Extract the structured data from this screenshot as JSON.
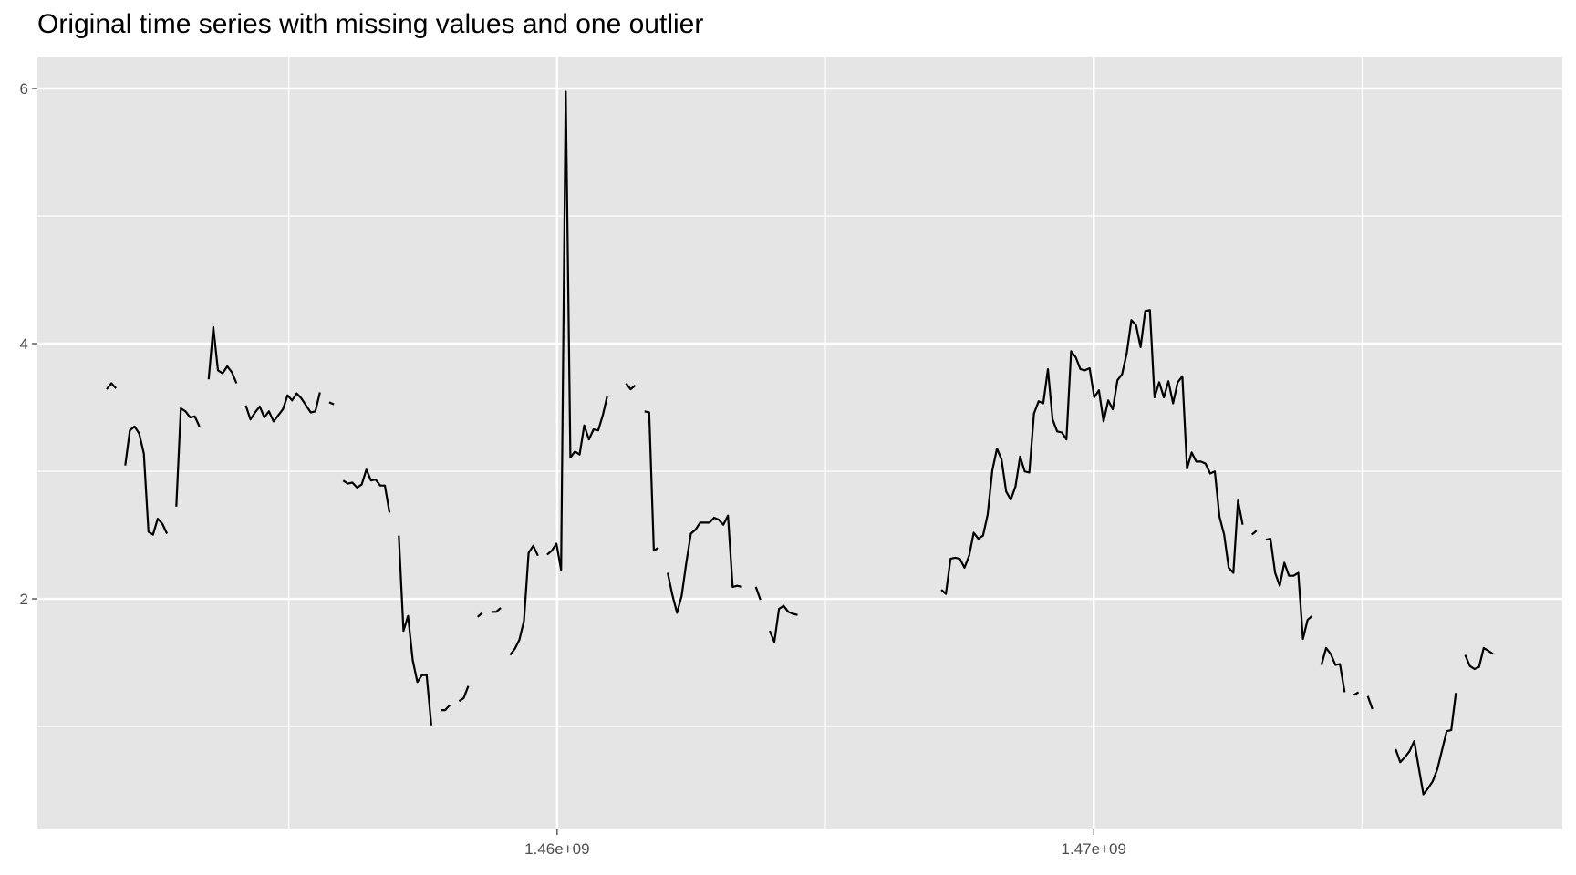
{
  "chart_data": {
    "type": "line",
    "title": "Original time series with missing values and one outlier",
    "xlabel": "",
    "ylabel": "",
    "xlim": [
      1450314720,
      1478731680
    ],
    "ylim": [
      0.193,
      6.25
    ],
    "x_breaks": [
      1460000000,
      1470000000
    ],
    "x_tick_labels": [
      "1.46e+09",
      "1.47e+09"
    ],
    "x_minor_breaks": [
      1455000000,
      1465000000,
      1475000000
    ],
    "y_breaks": [
      2,
      4,
      6
    ],
    "y_tick_labels": [
      "2",
      "4",
      "6"
    ],
    "y_minor_breaks": [
      1,
      3,
      5
    ],
    "grid": true,
    "legend": "none",
    "colors": {
      "line": "#000000",
      "panel": "#e5e5e5",
      "grid": "#ffffff",
      "tick_text": "#4d4d4d"
    },
    "points": [
      [
        1451606400,
        3.642
      ],
      [
        1451692800,
        3.689
      ],
      [
        1451779200,
        3.65
      ],
      [
        1451952000,
        3.045
      ],
      [
        1452038400,
        3.32
      ],
      [
        1452124800,
        3.351
      ],
      [
        1452211200,
        3.296
      ],
      [
        1452297600,
        3.139
      ],
      [
        1452384000,
        2.526
      ],
      [
        1452470400,
        2.503
      ],
      [
        1452556800,
        2.628
      ],
      [
        1452643200,
        2.589
      ],
      [
        1452729600,
        2.511
      ],
      [
        1452902400,
        2.723
      ],
      [
        1452988800,
        3.493
      ],
      [
        1453075200,
        3.469
      ],
      [
        1453161600,
        3.422
      ],
      [
        1453248000,
        3.43
      ],
      [
        1453334400,
        3.351
      ],
      [
        1453507200,
        3.72
      ],
      [
        1453593600,
        4.129
      ],
      [
        1453680000,
        3.791
      ],
      [
        1453766400,
        3.767
      ],
      [
        1453852800,
        3.822
      ],
      [
        1453939200,
        3.775
      ],
      [
        1454025600,
        3.689
      ],
      [
        1454198400,
        3.516
      ],
      [
        1454284800,
        3.406
      ],
      [
        1454371200,
        3.461
      ],
      [
        1454457600,
        3.508
      ],
      [
        1454544000,
        3.422
      ],
      [
        1454630400,
        3.469
      ],
      [
        1454716800,
        3.39
      ],
      [
        1454803200,
        3.438
      ],
      [
        1454889600,
        3.485
      ],
      [
        1454976000,
        3.595
      ],
      [
        1455062400,
        3.555
      ],
      [
        1455148800,
        3.61
      ],
      [
        1455235200,
        3.571
      ],
      [
        1455321600,
        3.516
      ],
      [
        1455408000,
        3.461
      ],
      [
        1455494400,
        3.469
      ],
      [
        1455580800,
        3.618
      ],
      [
        1455753600,
        3.54
      ],
      [
        1455840000,
        3.524
      ],
      [
        1456012800,
        2.927
      ],
      [
        1456099200,
        2.903
      ],
      [
        1456185600,
        2.911
      ],
      [
        1456272000,
        2.872
      ],
      [
        1456358400,
        2.896
      ],
      [
        1456444800,
        3.013
      ],
      [
        1456531200,
        2.927
      ],
      [
        1456617600,
        2.935
      ],
      [
        1456704000,
        2.888
      ],
      [
        1456790400,
        2.888
      ],
      [
        1456876800,
        2.676
      ],
      [
        1457049600,
        2.495
      ],
      [
        1457136000,
        1.749
      ],
      [
        1457222400,
        1.866
      ],
      [
        1457308800,
        1.521
      ],
      [
        1457395200,
        1.348
      ],
      [
        1457481600,
        1.403
      ],
      [
        1457568000,
        1.403
      ],
      [
        1457654400,
        1.01
      ],
      [
        1457827200,
        1.128
      ],
      [
        1457913600,
        1.128
      ],
      [
        1458000000,
        1.167
      ],
      [
        1458172800,
        1.199
      ],
      [
        1458259200,
        1.222
      ],
      [
        1458345600,
        1.317
      ],
      [
        1458518400,
        1.859
      ],
      [
        1458604800,
        1.89
      ],
      [
        1458777600,
        1.898
      ],
      [
        1458864000,
        1.898
      ],
      [
        1458950400,
        1.929
      ],
      [
        1459123200,
        1.56
      ],
      [
        1459209600,
        1.607
      ],
      [
        1459296000,
        1.678
      ],
      [
        1459382400,
        1.827
      ],
      [
        1459468800,
        2.361
      ],
      [
        1459555200,
        2.416
      ],
      [
        1459641600,
        2.338
      ],
      [
        1459814400,
        2.346
      ],
      [
        1459900800,
        2.377
      ],
      [
        1459987200,
        2.432
      ],
      [
        1460073600,
        2.228
      ],
      [
        1460160000,
        5.975
      ],
      [
        1460246400,
        3.108
      ],
      [
        1460332800,
        3.155
      ],
      [
        1460419200,
        3.131
      ],
      [
        1460505600,
        3.359
      ],
      [
        1460592000,
        3.249
      ],
      [
        1460678400,
        3.328
      ],
      [
        1460764800,
        3.32
      ],
      [
        1460851200,
        3.438
      ],
      [
        1460937600,
        3.595
      ],
      [
        1461283200,
        3.689
      ],
      [
        1461369600,
        3.642
      ],
      [
        1461456000,
        3.673
      ],
      [
        1461628800,
        3.469
      ],
      [
        1461715200,
        3.461
      ],
      [
        1461801600,
        2.377
      ],
      [
        1461888000,
        2.401
      ],
      [
        1462060800,
        2.204
      ],
      [
        1462147200,
        2.031
      ],
      [
        1462233600,
        1.89
      ],
      [
        1462320000,
        2.024
      ],
      [
        1462406400,
        2.283
      ],
      [
        1462492800,
        2.511
      ],
      [
        1462579200,
        2.542
      ],
      [
        1462665600,
        2.597
      ],
      [
        1462752000,
        2.597
      ],
      [
        1462838400,
        2.597
      ],
      [
        1462924800,
        2.636
      ],
      [
        1463011200,
        2.621
      ],
      [
        1463097600,
        2.581
      ],
      [
        1463184000,
        2.652
      ],
      [
        1463270400,
        2.094
      ],
      [
        1463356800,
        2.102
      ],
      [
        1463443200,
        2.094
      ],
      [
        1463702400,
        2.094
      ],
      [
        1463788800,
        1.992
      ],
      [
        1463961600,
        1.749
      ],
      [
        1464048000,
        1.662
      ],
      [
        1464134400,
        1.921
      ],
      [
        1464220800,
        1.945
      ],
      [
        1464307200,
        1.898
      ],
      [
        1464393600,
        1.882
      ],
      [
        1464480000,
        1.874
      ],
      [
        1467158400,
        2.071
      ],
      [
        1467244800,
        2.039
      ],
      [
        1467331200,
        2.314
      ],
      [
        1467417600,
        2.322
      ],
      [
        1467504000,
        2.314
      ],
      [
        1467590400,
        2.244
      ],
      [
        1467676800,
        2.338
      ],
      [
        1467763200,
        2.518
      ],
      [
        1467849600,
        2.471
      ],
      [
        1467936000,
        2.495
      ],
      [
        1468022400,
        2.66
      ],
      [
        1468108800,
        3.006
      ],
      [
        1468195200,
        3.178
      ],
      [
        1468281600,
        3.092
      ],
      [
        1468368000,
        2.841
      ],
      [
        1468454400,
        2.778
      ],
      [
        1468540800,
        2.88
      ],
      [
        1468627200,
        3.115
      ],
      [
        1468713600,
        2.998
      ],
      [
        1468800000,
        2.99
      ],
      [
        1468886400,
        3.453
      ],
      [
        1468972800,
        3.548
      ],
      [
        1469059200,
        3.532
      ],
      [
        1469145600,
        3.799
      ],
      [
        1469232000,
        3.406
      ],
      [
        1469318400,
        3.312
      ],
      [
        1469404800,
        3.304
      ],
      [
        1469491200,
        3.249
      ],
      [
        1469577600,
        3.94
      ],
      [
        1469664000,
        3.893
      ],
      [
        1469750400,
        3.799
      ],
      [
        1469836800,
        3.791
      ],
      [
        1469923200,
        3.807
      ],
      [
        1470009600,
        3.579
      ],
      [
        1470096000,
        3.634
      ],
      [
        1470182400,
        3.39
      ],
      [
        1470268800,
        3.555
      ],
      [
        1470355200,
        3.485
      ],
      [
        1470441600,
        3.713
      ],
      [
        1470528000,
        3.76
      ],
      [
        1470614400,
        3.925
      ],
      [
        1470700800,
        4.184
      ],
      [
        1470787200,
        4.145
      ],
      [
        1470873600,
        3.972
      ],
      [
        1470960000,
        4.255
      ],
      [
        1471046400,
        4.262
      ],
      [
        1471132800,
        3.579
      ],
      [
        1471219200,
        3.697
      ],
      [
        1471305600,
        3.579
      ],
      [
        1471392000,
        3.705
      ],
      [
        1471478400,
        3.532
      ],
      [
        1471564800,
        3.697
      ],
      [
        1471651200,
        3.744
      ],
      [
        1471737600,
        3.021
      ],
      [
        1471824000,
        3.147
      ],
      [
        1471910400,
        3.076
      ],
      [
        1471996800,
        3.076
      ],
      [
        1472083200,
        3.06
      ],
      [
        1472169600,
        2.982
      ],
      [
        1472256000,
        2.998
      ],
      [
        1472342400,
        2.644
      ],
      [
        1472428800,
        2.503
      ],
      [
        1472515200,
        2.244
      ],
      [
        1472601600,
        2.204
      ],
      [
        1472688000,
        2.77
      ],
      [
        1472774400,
        2.581
      ],
      [
        1472947200,
        2.503
      ],
      [
        1473033600,
        2.534
      ],
      [
        1473206400,
        2.463
      ],
      [
        1473292800,
        2.471
      ],
      [
        1473379200,
        2.204
      ],
      [
        1473465600,
        2.102
      ],
      [
        1473552000,
        2.283
      ],
      [
        1473638400,
        2.181
      ],
      [
        1473724800,
        2.181
      ],
      [
        1473811200,
        2.204
      ],
      [
        1473897600,
        1.686
      ],
      [
        1473984000,
        1.835
      ],
      [
        1474070400,
        1.866
      ],
      [
        1474243200,
        1.482
      ],
      [
        1474329600,
        1.615
      ],
      [
        1474416000,
        1.568
      ],
      [
        1474502400,
        1.482
      ],
      [
        1474588800,
        1.489
      ],
      [
        1474675200,
        1.269
      ],
      [
        1474848000,
        1.246
      ],
      [
        1474934400,
        1.269
      ],
      [
        1475107200,
        1.238
      ],
      [
        1475193600,
        1.136
      ],
      [
        1475625600,
        0.822
      ],
      [
        1475712000,
        0.72
      ],
      [
        1475798400,
        0.759
      ],
      [
        1475884800,
        0.806
      ],
      [
        1475971200,
        0.885
      ],
      [
        1476057600,
        0.672
      ],
      [
        1476144000,
        0.468
      ],
      [
        1476230400,
        0.515
      ],
      [
        1476316800,
        0.57
      ],
      [
        1476403200,
        0.665
      ],
      [
        1476489600,
        0.814
      ],
      [
        1476576000,
        0.963
      ],
      [
        1476662400,
        0.971
      ],
      [
        1476748800,
        1.262
      ],
      [
        1476921600,
        1.56
      ],
      [
        1477008000,
        1.474
      ],
      [
        1477094400,
        1.45
      ],
      [
        1477180800,
        1.466
      ],
      [
        1477267200,
        1.615
      ],
      [
        1477353600,
        1.592
      ],
      [
        1477440000,
        1.568
      ]
    ]
  }
}
